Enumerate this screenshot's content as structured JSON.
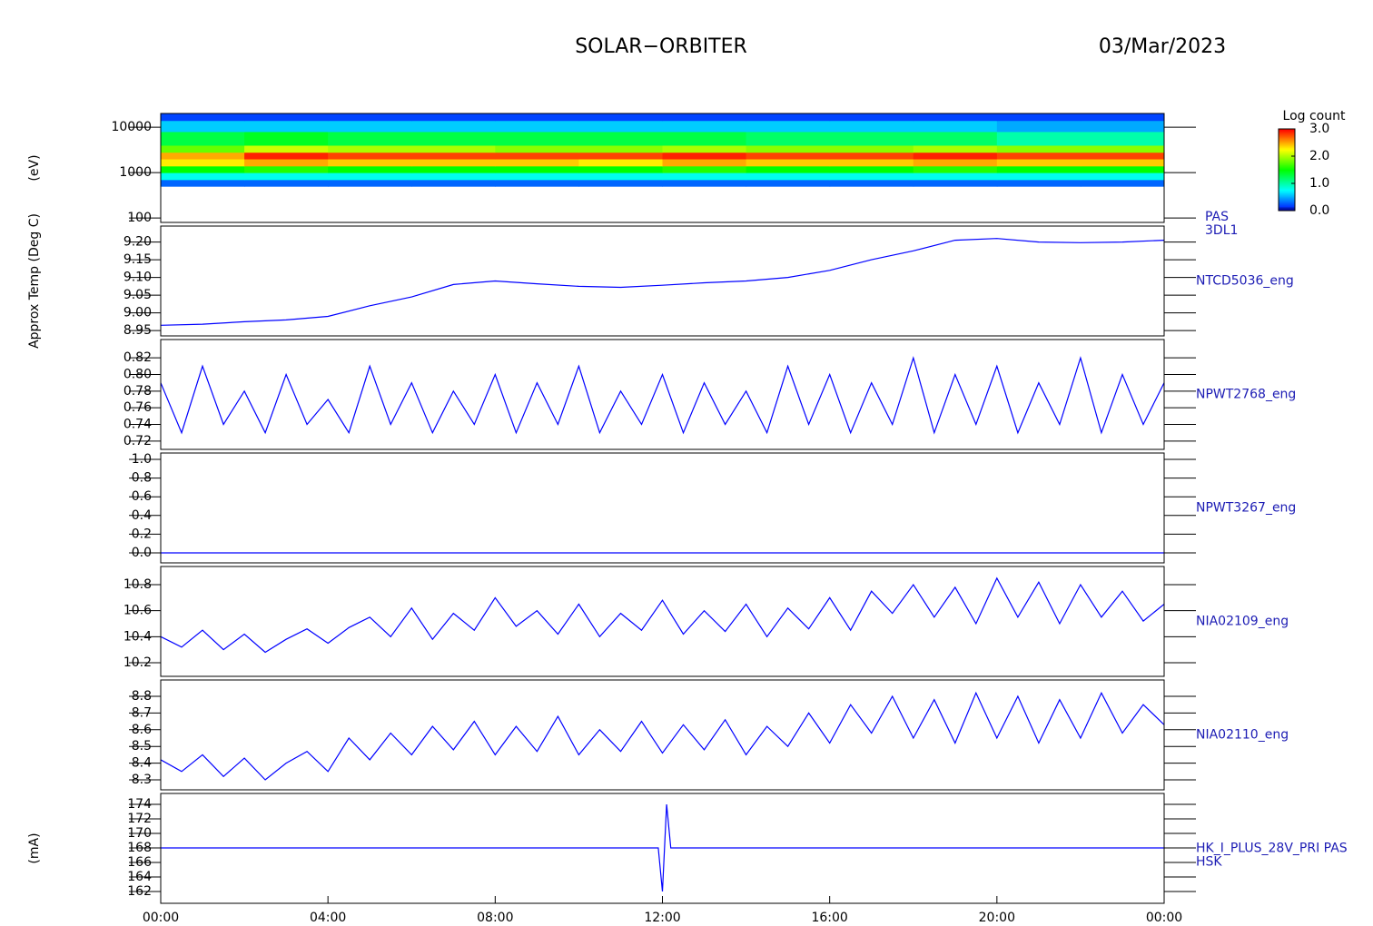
{
  "header": {
    "title": "SOLAR−ORBITER",
    "date": "03/Mar/2023"
  },
  "chart_data": [
    {
      "type": "heatmap",
      "ylabel": "(eV)",
      "labels": [
        "PAS",
        "3DL1"
      ],
      "log_y": true,
      "xlim": [
        0,
        24
      ],
      "ylim": [
        80,
        20000
      ],
      "yticks": [
        100,
        1000,
        10000
      ],
      "xbins": [
        0,
        2,
        4,
        6,
        8,
        10,
        12,
        14,
        16,
        18,
        20,
        22,
        24
      ],
      "ybins": [
        500,
        700,
        1000,
        1400,
        2000,
        2800,
        4000,
        8000,
        14000,
        20000
      ],
      "values": [
        [
          0.3,
          0.3,
          0.3,
          0.3,
          0.3,
          0.3,
          0.3,
          0.3,
          0.3,
          0.3,
          0.3,
          0.3
        ],
        [
          0.8,
          0.8,
          0.8,
          0.8,
          0.8,
          0.8,
          0.8,
          0.8,
          0.8,
          0.8,
          0.8,
          0.8
        ],
        [
          1.5,
          1.6,
          1.5,
          1.5,
          1.5,
          1.5,
          1.6,
          1.5,
          1.5,
          1.6,
          1.5,
          1.5
        ],
        [
          2.3,
          2.5,
          2.4,
          2.4,
          2.4,
          2.3,
          2.5,
          2.4,
          2.4,
          2.5,
          2.4,
          2.4
        ],
        [
          2.5,
          2.9,
          2.8,
          2.8,
          2.8,
          2.8,
          2.9,
          2.8,
          2.8,
          2.9,
          2.8,
          2.8
        ],
        [
          1.8,
          2.1,
          2.0,
          2.0,
          1.9,
          1.9,
          2.0,
          1.9,
          1.9,
          2.0,
          1.9,
          1.9
        ],
        [
          1.3,
          1.4,
          1.3,
          1.3,
          1.3,
          1.3,
          1.3,
          1.2,
          1.2,
          1.2,
          1.0,
          1.0
        ],
        [
          0.6,
          0.6,
          0.6,
          0.6,
          0.6,
          0.6,
          0.6,
          0.6,
          0.6,
          0.6,
          0.5,
          0.5
        ],
        [
          0.2,
          0.2,
          0.2,
          0.2,
          0.2,
          0.2,
          0.2,
          0.2,
          0.2,
          0.2,
          0.2,
          0.2
        ]
      ],
      "colorbar": {
        "title": "Log count",
        "lim": [
          0,
          3
        ],
        "ticks": [
          {
            "value": 0,
            "label": "0.0"
          },
          {
            "value": 1,
            "label": "1.0"
          },
          {
            "value": 2,
            "label": "2.0"
          },
          {
            "value": 3,
            "label": "3.0"
          }
        ]
      }
    },
    {
      "type": "line",
      "ylabel": "Approx Temp (Deg C)",
      "labels": [
        "NTCD5036_eng"
      ],
      "color": "#0000ff",
      "xlim": [
        0,
        24
      ],
      "ylim": [
        8.935,
        9.245
      ],
      "yticks": [
        8.95,
        {
          "value": 9,
          "label": "9.00"
        },
        9.05,
        {
          "value": 9.1,
          "label": "9.10"
        },
        9.15,
        {
          "value": 9.2,
          "label": "9.20"
        }
      ],
      "x": [
        0,
        1,
        2,
        3,
        4,
        5,
        6,
        7,
        8,
        9,
        10,
        11,
        12,
        13,
        14,
        15,
        16,
        17,
        18,
        19,
        20,
        21,
        22,
        23,
        24
      ],
      "values": [
        8.965,
        8.968,
        8.975,
        8.98,
        8.99,
        9.02,
        9.045,
        9.08,
        9.09,
        9.082,
        9.075,
        9.072,
        9.078,
        9.085,
        9.09,
        9.1,
        9.12,
        9.15,
        9.175,
        9.205,
        9.21,
        9.2,
        9.198,
        9.2,
        9.205
      ]
    },
    {
      "type": "line",
      "labels": [
        "NPWT2768_eng"
      ],
      "color": "#0000ff",
      "xlim": [
        0,
        24
      ],
      "ylim": [
        0.71,
        0.842
      ],
      "yticks": [
        0.72,
        0.74,
        0.76,
        0.78,
        {
          "value": 0.8,
          "label": "0.80"
        },
        0.82
      ],
      "x": [
        0,
        0.5,
        1,
        1.5,
        2,
        2.5,
        3,
        3.5,
        4,
        4.5,
        5,
        5.5,
        6,
        6.5,
        7,
        7.5,
        8,
        8.5,
        9,
        9.5,
        10,
        10.5,
        11,
        11.5,
        12,
        12.5,
        13,
        13.5,
        14,
        14.5,
        15,
        15.5,
        16,
        16.5,
        17,
        17.5,
        18,
        18.5,
        19,
        19.5,
        20,
        20.5,
        21,
        21.5,
        22,
        22.5,
        23,
        23.5,
        24
      ],
      "values": [
        0.79,
        0.73,
        0.81,
        0.74,
        0.78,
        0.73,
        0.8,
        0.74,
        0.77,
        0.73,
        0.81,
        0.74,
        0.79,
        0.73,
        0.78,
        0.74,
        0.8,
        0.73,
        0.79,
        0.74,
        0.81,
        0.73,
        0.78,
        0.74,
        0.8,
        0.73,
        0.79,
        0.74,
        0.78,
        0.73,
        0.81,
        0.74,
        0.8,
        0.73,
        0.79,
        0.74,
        0.82,
        0.73,
        0.8,
        0.74,
        0.81,
        0.73,
        0.79,
        0.74,
        0.82,
        0.73,
        0.8,
        0.74,
        0.79
      ]
    },
    {
      "type": "line",
      "labels": [
        "NPWT3267_eng"
      ],
      "color": "#0000ff",
      "xlim": [
        0,
        24
      ],
      "ylim": [
        -0.107,
        1.068
      ],
      "yticks": [
        {
          "value": 0,
          "label": "0.0"
        },
        0.2,
        0.4,
        0.6,
        0.8,
        {
          "value": 1,
          "label": "1.0"
        }
      ],
      "x": [
        0,
        1,
        2,
        3,
        4,
        5,
        6,
        7,
        8,
        9,
        10,
        11,
        12,
        13,
        14,
        15,
        16,
        17,
        18,
        19,
        20,
        21,
        22,
        23,
        24
      ],
      "values": [
        0,
        0,
        0,
        0,
        0,
        0,
        0,
        0,
        0,
        0,
        0,
        0,
        0,
        0,
        0,
        0,
        0,
        0,
        0,
        0,
        0,
        0,
        0,
        0,
        0
      ]
    },
    {
      "type": "line",
      "labels": [
        "NIA02109_eng"
      ],
      "color": "#0000ff",
      "xlim": [
        0,
        24
      ],
      "ylim": [
        10.095,
        10.94
      ],
      "yticks": [
        10.2,
        10.4,
        10.6,
        10.8
      ],
      "x": [
        0,
        0.5,
        1,
        1.5,
        2,
        2.5,
        3,
        3.5,
        4,
        4.5,
        5,
        5.5,
        6,
        6.5,
        7,
        7.5,
        8,
        8.5,
        9,
        9.5,
        10,
        10.5,
        11,
        11.5,
        12,
        12.5,
        13,
        13.5,
        14,
        14.5,
        15,
        15.5,
        16,
        16.5,
        17,
        17.5,
        18,
        18.5,
        19,
        19.5,
        20,
        20.5,
        21,
        21.5,
        22,
        22.5,
        23,
        23.5,
        24
      ],
      "values": [
        10.4,
        10.32,
        10.45,
        10.3,
        10.42,
        10.28,
        10.38,
        10.46,
        10.35,
        10.47,
        10.55,
        10.4,
        10.62,
        10.38,
        10.58,
        10.45,
        10.7,
        10.48,
        10.6,
        10.42,
        10.65,
        10.4,
        10.58,
        10.45,
        10.68,
        10.42,
        10.6,
        10.44,
        10.65,
        10.4,
        10.62,
        10.46,
        10.7,
        10.45,
        10.75,
        10.58,
        10.8,
        10.55,
        10.78,
        10.5,
        10.85,
        10.55,
        10.82,
        10.5,
        10.8,
        10.55,
        10.75,
        10.52,
        10.65
      ]
    },
    {
      "type": "line",
      "labels": [
        "NIA02110_eng"
      ],
      "color": "#0000ff",
      "xlim": [
        0,
        24
      ],
      "ylim": [
        8.24,
        8.898
      ],
      "yticks": [
        8.3,
        8.4,
        8.5,
        8.6,
        8.7,
        8.8
      ],
      "x": [
        0,
        0.5,
        1,
        1.5,
        2,
        2.5,
        3,
        3.5,
        4,
        4.5,
        5,
        5.5,
        6,
        6.5,
        7,
        7.5,
        8,
        8.5,
        9,
        9.5,
        10,
        10.5,
        11,
        11.5,
        12,
        12.5,
        13,
        13.5,
        14,
        14.5,
        15,
        15.5,
        16,
        16.5,
        17,
        17.5,
        18,
        18.5,
        19,
        19.5,
        20,
        20.5,
        21,
        21.5,
        22,
        22.5,
        23,
        23.5,
        24
      ],
      "values": [
        8.42,
        8.35,
        8.45,
        8.32,
        8.43,
        8.3,
        8.4,
        8.47,
        8.35,
        8.55,
        8.42,
        8.58,
        8.45,
        8.62,
        8.48,
        8.65,
        8.45,
        8.62,
        8.47,
        8.68,
        8.45,
        8.6,
        8.47,
        8.65,
        8.46,
        8.63,
        8.48,
        8.66,
        8.45,
        8.62,
        8.5,
        8.7,
        8.52,
        8.75,
        8.58,
        8.8,
        8.55,
        8.78,
        8.52,
        8.82,
        8.55,
        8.8,
        8.52,
        8.78,
        8.55,
        8.82,
        8.58,
        8.75,
        8.63
      ]
    },
    {
      "type": "line",
      "ylabel": "(mA)",
      "labels": [
        "HK_I_PLUS_28V_PRI PAS",
        "HSK"
      ],
      "color": "#0000ff",
      "xlim": [
        0,
        24
      ],
      "ylim": [
        160.375,
        175.5
      ],
      "yticks": [
        162,
        164,
        166,
        168,
        170,
        172,
        174
      ],
      "xticks": [
        {
          "value": 0,
          "label": "00:00"
        },
        {
          "value": 4,
          "label": "04:00"
        },
        {
          "value": 8,
          "label": "08:00"
        },
        {
          "value": 12,
          "label": "12:00"
        },
        {
          "value": 16,
          "label": "16:00"
        },
        {
          "value": 20,
          "label": "20:00"
        },
        {
          "value": 24,
          "label": "00:00"
        }
      ],
      "x": [
        0,
        4,
        8,
        11.9,
        12.0,
        12.1,
        12.2,
        16,
        20,
        24
      ],
      "values": [
        168,
        168,
        168,
        168,
        162,
        174,
        168,
        168,
        168,
        168
      ]
    }
  ]
}
